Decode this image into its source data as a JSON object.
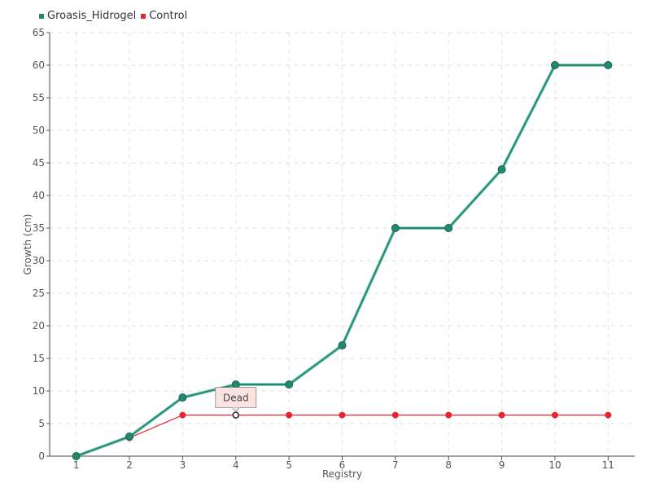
{
  "chart_data": {
    "type": "line",
    "x": [
      1,
      2,
      3,
      4,
      5,
      6,
      7,
      8,
      9,
      10,
      11
    ],
    "xlabel": "Registry",
    "ylabel": "Growth (cm)",
    "ylim": [
      0,
      65
    ],
    "yticks": [
      0,
      5,
      10,
      15,
      20,
      25,
      30,
      35,
      40,
      45,
      50,
      55,
      60,
      65
    ],
    "grid": true,
    "legend_position": "top-left",
    "series": [
      {
        "name": "Groasis_Hidrogel",
        "color": "#1f8a70",
        "values": [
          0,
          3,
          9,
          11,
          11,
          17,
          35,
          35,
          44,
          60,
          60
        ]
      },
      {
        "name": "Control",
        "color": "#e8252f",
        "values": [
          0,
          2.8,
          6.3,
          6.3,
          6.3,
          6.3,
          6.3,
          6.3,
          6.3,
          6.3,
          6.3
        ]
      }
    ],
    "annotations": [
      {
        "text": "Dead",
        "series": "Control",
        "x": 4
      }
    ]
  }
}
